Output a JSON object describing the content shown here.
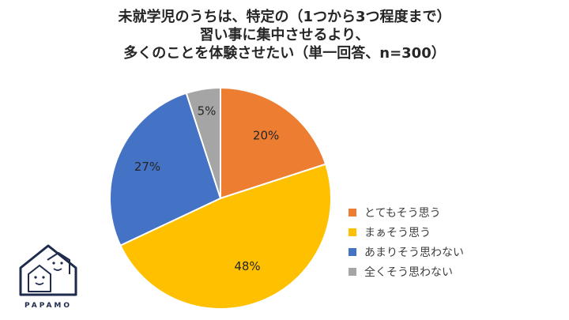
{
  "chart_data": {
    "type": "pie",
    "title_lines": [
      "未就学児のうちは、特定の（1つから3つ程度まで）",
      "習い事に集中させるより、",
      "多くのことを体験させたい（単一回答、n=300）"
    ],
    "categories": [
      "とてもそう思う",
      "まぁそう思う",
      "あまりそう思わない",
      "全くそう思わない"
    ],
    "values": [
      20,
      48,
      27,
      5
    ],
    "labels": [
      "20%",
      "48%",
      "27%",
      "5%"
    ],
    "colors": [
      "#ED7D31",
      "#FFC000",
      "#4472C4",
      "#A5A5A5"
    ],
    "legend_position": "right"
  },
  "logo": {
    "text": "PAPAMO"
  }
}
